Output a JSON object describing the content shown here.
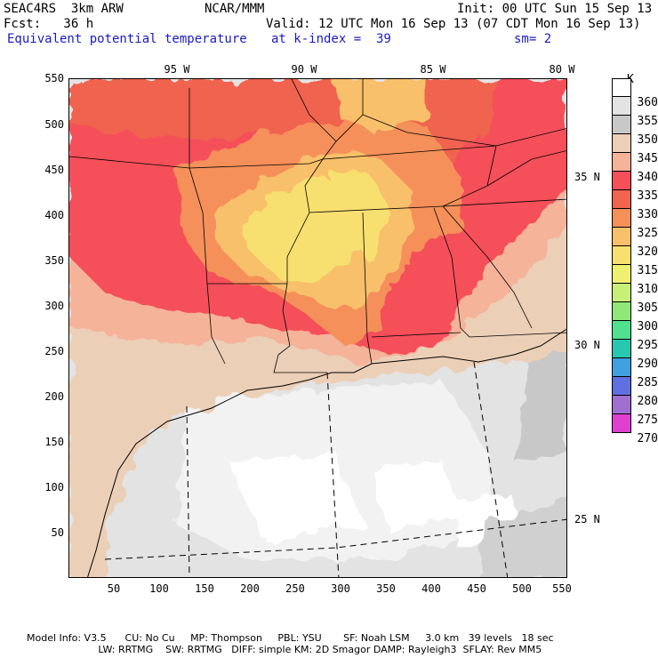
{
  "header": {
    "model": "SEAC4RS  3km ARW",
    "org": "NCAR/MMM",
    "init": "Init: 00 UTC Sun 15 Sep 13",
    "fcst": "Fcst:   36 h",
    "valid": "Valid: 12 UTC Mon 16 Sep 13 (07 CDT Mon 16 Sep 13)",
    "field": "Equivalent potential temperature",
    "level": "at k-index =  39",
    "smooth": "sm= 2"
  },
  "axes": {
    "y_ticks": [
      "550",
      "500",
      "450",
      "400",
      "350",
      "300",
      "250",
      "200",
      "150",
      "100",
      "50"
    ],
    "x_ticks": [
      "50",
      "100",
      "150",
      "200",
      "250",
      "300",
      "350",
      "400",
      "450",
      "500",
      "550"
    ],
    "lon_labels": [
      "95 W",
      "90 W",
      "85 W",
      "80 W"
    ],
    "lat_labels": [
      "35 N",
      "30 N",
      "25 N"
    ]
  },
  "colorbar": {
    "unit": "K",
    "levels": [
      "360",
      "355",
      "350",
      "345",
      "340",
      "335",
      "330",
      "325",
      "320",
      "315",
      "310",
      "305",
      "300",
      "295",
      "290",
      "285",
      "280",
      "275",
      "270"
    ],
    "colors": [
      "#ffffff",
      "#e3e3e3",
      "#c8c8c8",
      "#eccfb7",
      "#f5b39a",
      "#f5505a",
      "#f06450",
      "#f5905a",
      "#f8c06a",
      "#f8e070",
      "#f0f070",
      "#c8f078",
      "#90e878",
      "#50e090",
      "#28c8b0",
      "#40a0e0",
      "#6070e0",
      "#a070d0",
      "#e040d0"
    ]
  },
  "footer": {
    "line1": "Model Info: V3.5      CU: No Cu     MP: Thompson     PBL: YSU       SF: Noah LSM     3.0 km   39 levels   18 sec",
    "line2": "                       LW: RRTMG    SW: RRTMG   DIFF: simple KM: 2D Smagor DAMP: Rayleigh3  SFLAY: Rev MM5"
  }
}
